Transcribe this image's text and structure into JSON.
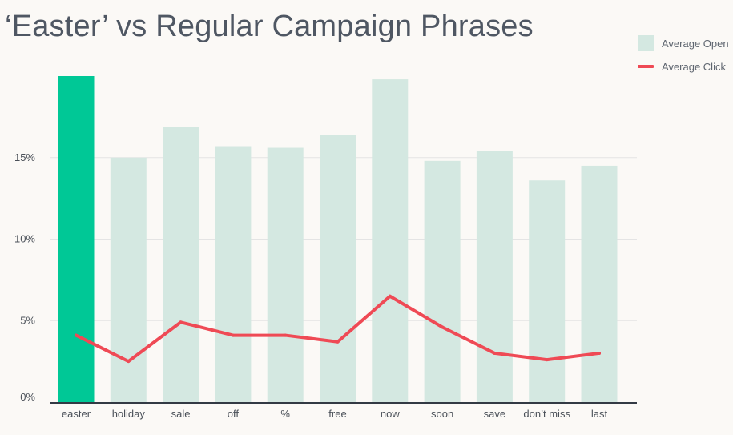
{
  "title": "‘Easter’ vs Regular Campaign Phrases",
  "legend": {
    "open_label": "Average Open",
    "click_label": "Average Click",
    "position": "top-right"
  },
  "colors": {
    "highlight": "#00c896",
    "bar": "#d4e8e1",
    "line": "#ef4a55",
    "grid": "#e4e4e4",
    "axis": "#333a44",
    "tick_text": "#4a5058",
    "title": "#4f5763",
    "background": "#fbf9f6"
  },
  "chart_data": {
    "type": "bar",
    "title": "‘Easter’ vs Regular Campaign Phrases",
    "xlabel": "",
    "ylabel": "",
    "categories": [
      "easter",
      "holiday",
      "sale",
      "off",
      "%",
      "free",
      "now",
      "soon",
      "save",
      "don’t miss",
      "last"
    ],
    "series": [
      {
        "name": "Average Open",
        "type": "bar",
        "values": [
          20.0,
          15.0,
          16.9,
          15.7,
          15.6,
          16.4,
          19.8,
          14.8,
          15.4,
          13.6,
          14.5
        ]
      },
      {
        "name": "Average Click",
        "type": "line",
        "values": [
          4.1,
          2.5,
          4.9,
          4.1,
          4.1,
          3.7,
          6.5,
          4.6,
          3.0,
          2.6,
          3.0
        ]
      }
    ],
    "highlight_category": "easter",
    "ylim": [
      0,
      20
    ],
    "y_ticks": [
      0,
      5,
      10,
      15
    ],
    "y_tick_labels": [
      "0%",
      "5%",
      "10%",
      "15%"
    ],
    "grid": true
  }
}
